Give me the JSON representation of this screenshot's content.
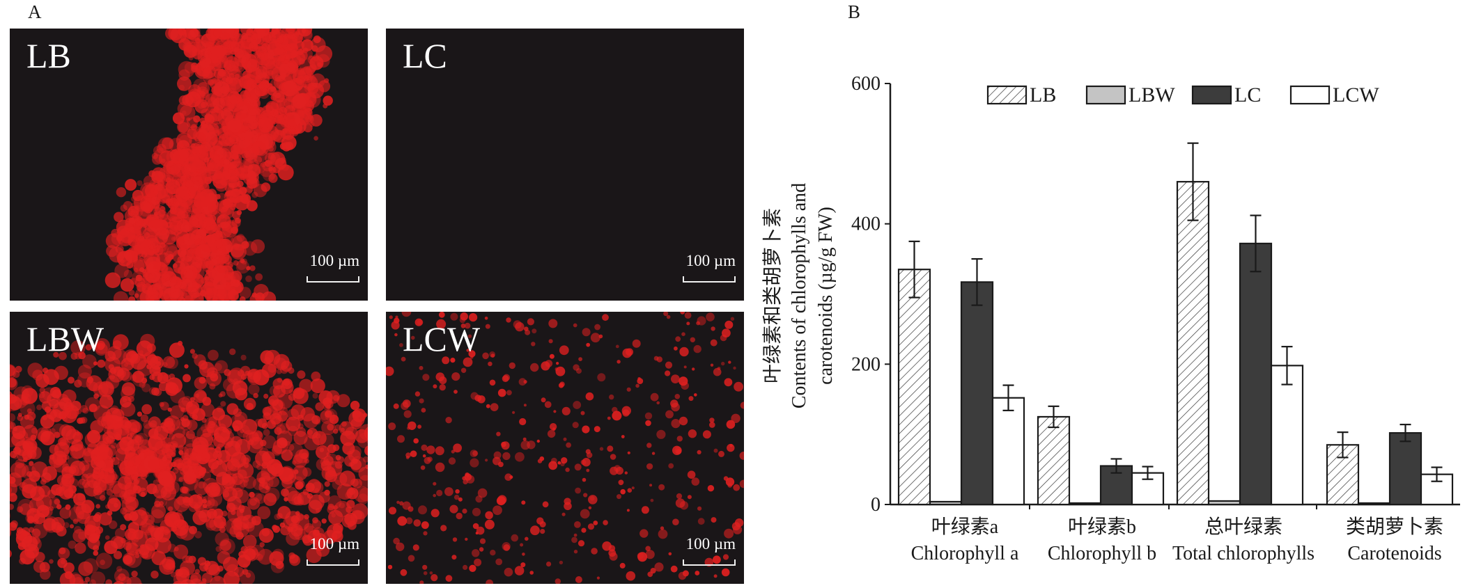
{
  "panels": {
    "a_label": "A",
    "b_label": "B"
  },
  "micrographs": [
    {
      "label": "LB",
      "scale": "100 µm",
      "fluorescence": "dense-red"
    },
    {
      "label": "LC",
      "scale": "100 µm",
      "fluorescence": "none"
    },
    {
      "label": "LBW",
      "scale": "100 µm",
      "fluorescence": "dense-red"
    },
    {
      "label": "LCW",
      "scale": "100 µm",
      "fluorescence": "scattered-red"
    }
  ],
  "colors": {
    "fluorescence": "#e02020",
    "micro_background": "#1a1618",
    "LBW_fill": "#c4c4c4",
    "LC_fill": "#3c3c3c",
    "LCW_fill": "#ffffff"
  },
  "chart_data": {
    "type": "bar",
    "ylabel_cn": "叶绿素和类胡萝卜素",
    "ylabel_en_1": "Contents of chlorophylls and",
    "ylabel_en_2": "carotenoids (µg/g FW)",
    "ylim": [
      0,
      600
    ],
    "yticks": [
      0,
      200,
      400,
      600
    ],
    "categories": [
      {
        "cn": "叶绿素a",
        "en": "Chlorophyll a"
      },
      {
        "cn": "叶绿素b",
        "en": "Chlorophyll b"
      },
      {
        "cn": "总叶绿素",
        "en": "Total chlorophylls"
      },
      {
        "cn": "类胡萝卜素",
        "en": "Carotenoids"
      }
    ],
    "series": [
      {
        "name": "LB",
        "pattern": "hatch",
        "values": [
          335,
          125,
          460,
          85
        ],
        "errors": [
          40,
          15,
          55,
          18
        ]
      },
      {
        "name": "LBW",
        "pattern": "gray",
        "values": [
          4,
          2,
          5,
          2
        ],
        "errors": [
          0,
          0,
          0,
          0
        ]
      },
      {
        "name": "LC",
        "pattern": "dark",
        "values": [
          317,
          55,
          372,
          102
        ],
        "errors": [
          33,
          10,
          40,
          12
        ]
      },
      {
        "name": "LCW",
        "pattern": "white",
        "values": [
          152,
          45,
          198,
          43
        ],
        "errors": [
          18,
          9,
          27,
          10
        ]
      }
    ],
    "legend_position": "top"
  }
}
